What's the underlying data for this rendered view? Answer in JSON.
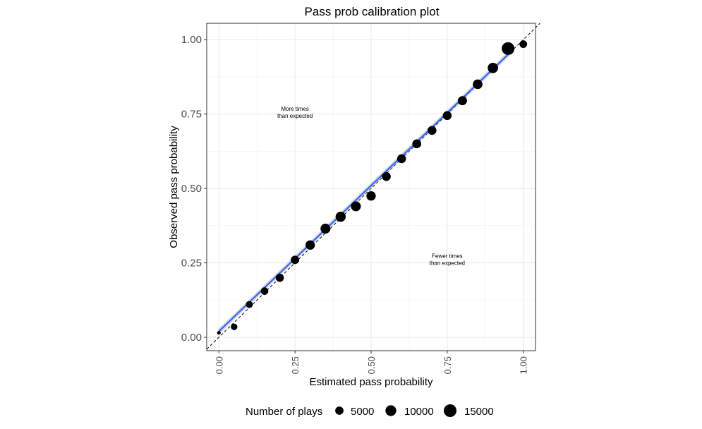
{
  "chart_data": {
    "type": "scatter",
    "title": "Pass prob calibration plot",
    "xlabel": "Estimated pass probability",
    "ylabel": "Observed pass probability",
    "xlim": [
      -0.04,
      1.04
    ],
    "ylim": [
      -0.045,
      1.055
    ],
    "x_ticks": [
      0,
      0.25,
      0.5,
      0.75,
      1
    ],
    "x_tick_labels": [
      "0.00",
      "0.25",
      "0.50",
      "0.75",
      "1.00"
    ],
    "y_ticks": [
      0,
      0.25,
      0.5,
      0.75,
      1
    ],
    "y_tick_labels": [
      "0.00",
      "0.25",
      "0.50",
      "0.75",
      "1.00"
    ],
    "grid": true,
    "points": [
      {
        "x": 0.0,
        "y": 0.015,
        "n": 300
      },
      {
        "x": 0.05,
        "y": 0.035,
        "n": 2500
      },
      {
        "x": 0.1,
        "y": 0.11,
        "n": 3000
      },
      {
        "x": 0.15,
        "y": 0.155,
        "n": 3800
      },
      {
        "x": 0.2,
        "y": 0.2,
        "n": 4800
      },
      {
        "x": 0.25,
        "y": 0.26,
        "n": 5200
      },
      {
        "x": 0.3,
        "y": 0.31,
        "n": 7000
      },
      {
        "x": 0.35,
        "y": 0.365,
        "n": 8000
      },
      {
        "x": 0.4,
        "y": 0.405,
        "n": 8500
      },
      {
        "x": 0.45,
        "y": 0.44,
        "n": 8000
      },
      {
        "x": 0.5,
        "y": 0.475,
        "n": 7000
      },
      {
        "x": 0.55,
        "y": 0.54,
        "n": 6000
      },
      {
        "x": 0.6,
        "y": 0.6,
        "n": 6000
      },
      {
        "x": 0.65,
        "y": 0.65,
        "n": 6000
      },
      {
        "x": 0.7,
        "y": 0.695,
        "n": 6000
      },
      {
        "x": 0.75,
        "y": 0.745,
        "n": 6000
      },
      {
        "x": 0.8,
        "y": 0.795,
        "n": 6500
      },
      {
        "x": 0.85,
        "y": 0.85,
        "n": 7500
      },
      {
        "x": 0.9,
        "y": 0.905,
        "n": 9000
      },
      {
        "x": 0.95,
        "y": 0.97,
        "n": 15000
      },
      {
        "x": 1.0,
        "y": 0.985,
        "n": 4000
      }
    ],
    "reference_line": {
      "from": [
        -0.04,
        -0.04
      ],
      "to": [
        1.055,
        1.055
      ],
      "style": "dashed",
      "color": "#000000"
    },
    "smooth_line": {
      "from": [
        0.0,
        0.02
      ],
      "to": [
        0.96,
        0.96
      ],
      "color": "#3366FF"
    },
    "annotations": [
      {
        "x": 0.25,
        "y": 0.74,
        "lines": [
          "More times",
          "than expected"
        ]
      },
      {
        "x": 0.75,
        "y": 0.245,
        "lines": [
          "Fewer times",
          "than expected"
        ]
      }
    ],
    "legend": {
      "title": "Number of plays",
      "position": "bottom",
      "items": [
        {
          "label": "5000",
          "n": 5000
        },
        {
          "label": "10000",
          "n": 10000
        },
        {
          "label": "15000",
          "n": 15000
        }
      ]
    }
  }
}
